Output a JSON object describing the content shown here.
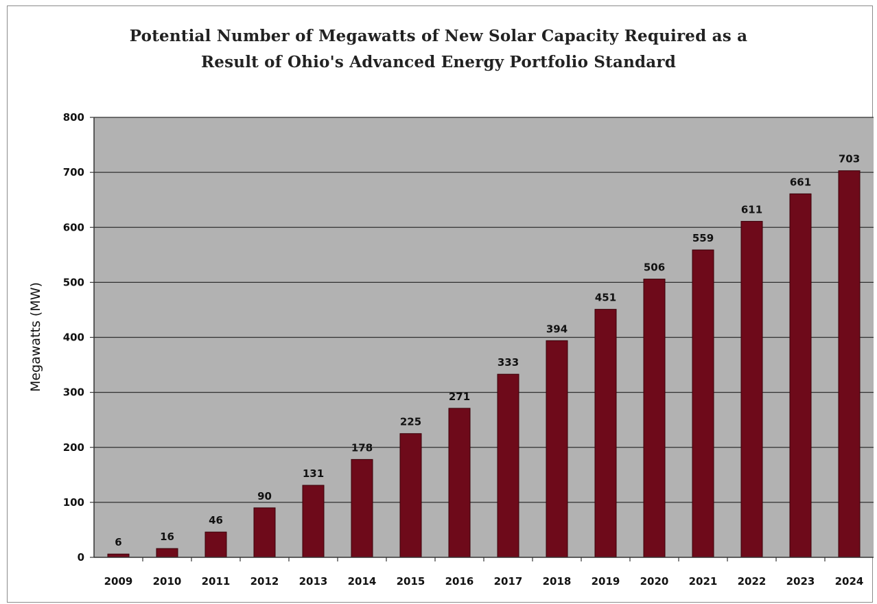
{
  "chart_data": {
    "type": "bar",
    "title_lines": [
      "Potential Number of Megawatts of New Solar Capacity Required as a",
      "Result of Ohio's Advanced Energy Portfolio Standard"
    ],
    "xlabel": "",
    "ylabel": "Megawatts (MW)",
    "ylim": [
      0,
      800
    ],
    "yticks": [
      0,
      100,
      200,
      300,
      400,
      500,
      600,
      700,
      800
    ],
    "grid": "horizontal",
    "legend": "none",
    "categories": [
      "2009",
      "2010",
      "2011",
      "2012",
      "2013",
      "2014",
      "2015",
      "2016",
      "2017",
      "2018",
      "2019",
      "2020",
      "2021",
      "2022",
      "2023",
      "2024"
    ],
    "values": [
      6,
      16,
      46,
      90,
      131,
      178,
      225,
      271,
      333,
      394,
      451,
      506,
      559,
      611,
      661,
      703
    ],
    "plot_background": "#b2b2b2",
    "bar_color": "#6e0a1a"
  }
}
